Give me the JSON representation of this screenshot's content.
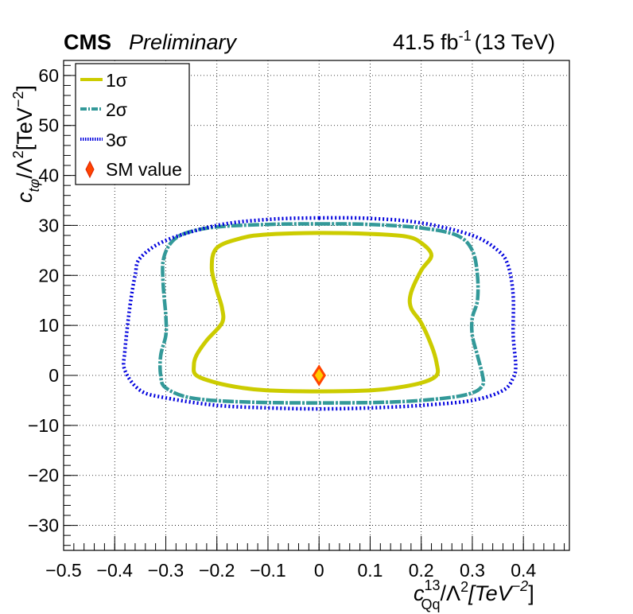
{
  "header": {
    "experiment": "CMS",
    "status": "Preliminary",
    "lumi": "41.5 fb",
    "lumi_exp": "-1",
    "energy": "(13 TeV)"
  },
  "axes": {
    "xlabel": {
      "main": "c",
      "sub": "Qq",
      "sup": "13",
      "tail": "/Λ",
      "tail_sup": "2",
      "unit": "[TeV",
      "unit_sup": "−2",
      "close": "]"
    },
    "ylabel": {
      "main": "c",
      "sub": "tφ",
      "tail": "/Λ",
      "tail_sup": "2",
      "unit": "[TeV",
      "unit_sup": "−2",
      "close": "]"
    }
  },
  "legend": {
    "items": [
      {
        "label": "1σ",
        "color": "#cccc00",
        "style": "solid"
      },
      {
        "label": "2σ",
        "color": "#339999",
        "style": "dashdot"
      },
      {
        "label": "3σ",
        "color": "#0000dd",
        "style": "dotted"
      },
      {
        "label": "SM value",
        "color": "#ff4400",
        "style": "marker"
      }
    ],
    "placement": "top-left"
  },
  "chart_data": {
    "type": "line",
    "xlim": [
      -0.5,
      0.49
    ],
    "ylim": [
      -35,
      63
    ],
    "xticks": [
      -0.5,
      -0.4,
      -0.3,
      -0.2,
      -0.1,
      0,
      0.1,
      0.2,
      0.3,
      0.4
    ],
    "xtick_labels": [
      "−0.5",
      "−0.4",
      "−0.3",
      "−0.2",
      "−0.1",
      "0",
      "0.1",
      "0.2",
      "0.3",
      "0.4"
    ],
    "yticks": [
      -30,
      -20,
      -10,
      0,
      10,
      20,
      30,
      40,
      50,
      60
    ],
    "ytick_labels": [
      "−30",
      "−20",
      "−10",
      "0",
      "10",
      "20",
      "30",
      "40",
      "50",
      "60"
    ],
    "grid": true,
    "series": [
      {
        "name": "1σ",
        "color": "#cccc00",
        "style": "solid",
        "x": [
          0.0,
          0.1,
          0.17,
          0.2,
          0.22,
          0.2,
          0.18,
          0.18,
          0.2,
          0.22,
          0.23,
          0.23,
          0.2,
          0.15,
          0.1,
          0.0,
          -0.1,
          -0.15,
          -0.2,
          -0.24,
          -0.245,
          -0.24,
          -0.22,
          -0.19,
          -0.19,
          -0.2,
          -0.21,
          -0.2,
          -0.15,
          -0.1,
          0.0
        ],
        "y": [
          28.5,
          28.3,
          27.8,
          26.5,
          24.0,
          21.0,
          16.5,
          13.5,
          10.5,
          6.0,
          2.5,
          0.0,
          -1.5,
          -2.5,
          -3.0,
          -3.2,
          -3.0,
          -2.5,
          -1.5,
          0.0,
          2.0,
          4.0,
          7.0,
          10.5,
          13.5,
          17.0,
          21.5,
          25.5,
          27.5,
          28.2,
          28.5
        ]
      },
      {
        "name": "2σ",
        "color": "#339999",
        "style": "dashdot",
        "x": [
          0.0,
          0.1,
          0.2,
          0.27,
          0.3,
          0.31,
          0.31,
          0.3,
          0.3,
          0.31,
          0.32,
          0.32,
          0.3,
          0.25,
          0.15,
          0.0,
          -0.15,
          -0.25,
          -0.3,
          -0.31,
          -0.31,
          -0.3,
          -0.3,
          -0.305,
          -0.305,
          -0.29,
          -0.26,
          -0.2,
          -0.1,
          0.0
        ],
        "y": [
          30.3,
          30.2,
          29.5,
          28.0,
          25.0,
          20.0,
          15.0,
          11.5,
          8.0,
          4.0,
          0.0,
          -2.0,
          -3.5,
          -4.5,
          -5.3,
          -5.5,
          -5.3,
          -4.5,
          -2.5,
          0.0,
          4.0,
          8.0,
          12.0,
          18.0,
          23.0,
          26.5,
          28.5,
          29.7,
          30.2,
          30.3
        ]
      },
      {
        "name": "3σ",
        "color": "#0000dd",
        "style": "dotted",
        "x": [
          0.0,
          0.1,
          0.2,
          0.3,
          0.35,
          0.37,
          0.38,
          0.38,
          0.385,
          0.38,
          0.36,
          0.3,
          0.2,
          0.1,
          0.0,
          -0.1,
          -0.2,
          -0.3,
          -0.35,
          -0.38,
          -0.38,
          -0.37,
          -0.36,
          -0.35,
          -0.3,
          -0.2,
          -0.1,
          0.0
        ],
        "y": [
          31.5,
          31.4,
          30.5,
          28.0,
          25.0,
          22.0,
          16.0,
          8.0,
          2.0,
          -0.5,
          -3.0,
          -5.0,
          -6.0,
          -6.5,
          -6.7,
          -6.5,
          -6.0,
          -4.5,
          -3.0,
          1.0,
          5.0,
          14.0,
          20.0,
          23.5,
          27.0,
          30.0,
          31.2,
          31.5
        ]
      }
    ],
    "points": [
      {
        "name": "SM value",
        "x": 0.0,
        "y": 0.0,
        "color": "#ff4400",
        "marker": "diamond"
      }
    ]
  }
}
